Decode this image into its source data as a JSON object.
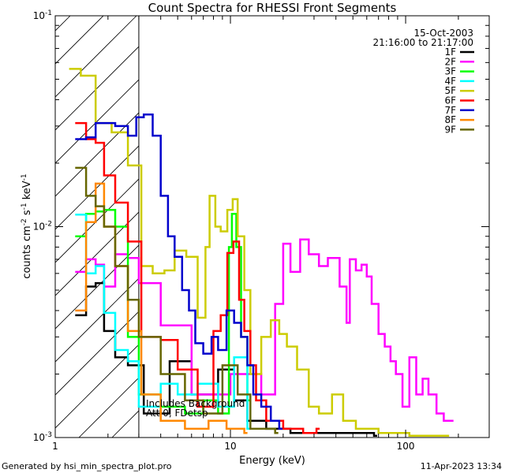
{
  "chart_data": {
    "type": "line",
    "title": "Count Spectra for RHESSI Front Segments",
    "xlabel": "Energy (keV)",
    "ylabel_parts": {
      "base": "counts cm",
      "exp1": "-2",
      "mid": " s",
      "exp2": "-1",
      "unit": " keV",
      "exp3": "-1"
    },
    "x_scale": "log",
    "y_scale": "log",
    "xlim": [
      1,
      300
    ],
    "ylim": [
      0.001,
      0.1
    ],
    "x_ticks": [
      {
        "v": 1,
        "label": "1"
      },
      {
        "v": 10,
        "label": "10"
      },
      {
        "v": 100,
        "label": "100"
      }
    ],
    "y_ticks": [
      {
        "v": 0.001,
        "m": "10",
        "e": "-3"
      },
      {
        "v": 0.01,
        "m": "10",
        "e": "-2"
      },
      {
        "v": 0.1,
        "m": "10",
        "e": "-1"
      }
    ],
    "date": "15-Oct-2003",
    "time_range": "21:16:00 to 21:17:00",
    "shaded_region_xmax": 3,
    "annotation_lines": [
      "Includes Background",
      "Att 0, FDetsp"
    ],
    "footer_left": "Generated by hsi_min_spectra_plot.pro",
    "footer_right": "11-Apr-2023 13:34",
    "legend_position": "top-right",
    "series": [
      {
        "name": "1F",
        "color": "#000000",
        "points": [
          [
            1.3,
            0.0038
          ],
          [
            1.5,
            0.0052
          ],
          [
            1.7,
            0.0054
          ],
          [
            1.9,
            0.0032
          ],
          [
            2.2,
            0.0024
          ],
          [
            2.6,
            0.0022
          ],
          [
            3.2,
            0.0013
          ],
          [
            4.5,
            0.0023
          ],
          [
            6.0,
            0.0016
          ],
          [
            8.5,
            0.0021
          ],
          [
            10.5,
            0.0015
          ],
          [
            12.5,
            0.0012
          ],
          [
            16,
            0.0011
          ],
          [
            22,
            0.00105
          ],
          [
            66,
            0.00102
          ]
        ]
      },
      {
        "name": "2F",
        "color": "#ff00ff",
        "points": [
          [
            1.3,
            0.0061
          ],
          [
            1.5,
            0.007
          ],
          [
            1.7,
            0.0066
          ],
          [
            1.9,
            0.0052
          ],
          [
            2.2,
            0.0074
          ],
          [
            2.6,
            0.0071
          ],
          [
            3.0,
            0.0054
          ],
          [
            4.0,
            0.0034
          ],
          [
            6.0,
            0.0016
          ],
          [
            10,
            0.002
          ],
          [
            15,
            0.0016
          ],
          [
            18,
            0.0043
          ],
          [
            20,
            0.0083
          ],
          [
            22,
            0.0061
          ],
          [
            25,
            0.0087
          ],
          [
            28,
            0.0074
          ],
          [
            32,
            0.0065
          ],
          [
            36,
            0.0071
          ],
          [
            42,
            0.0052
          ],
          [
            46,
            0.0035
          ],
          [
            48,
            0.007
          ],
          [
            52,
            0.0062
          ],
          [
            56,
            0.0066
          ],
          [
            60,
            0.0058
          ],
          [
            64,
            0.0043
          ],
          [
            70,
            0.0031
          ],
          [
            76,
            0.0027
          ],
          [
            82,
            0.0023
          ],
          [
            88,
            0.002
          ],
          [
            96,
            0.0014
          ],
          [
            105,
            0.0024
          ],
          [
            115,
            0.0016
          ],
          [
            125,
            0.0019
          ],
          [
            135,
            0.0016
          ],
          [
            150,
            0.0013
          ],
          [
            165,
            0.0012
          ],
          [
            180,
            0.0012
          ]
        ]
      },
      {
        "name": "3F",
        "color": "#00ff00",
        "points": [
          [
            1.3,
            0.009
          ],
          [
            1.5,
            0.0115
          ],
          [
            1.7,
            0.0118
          ],
          [
            1.9,
            0.012
          ],
          [
            2.2,
            0.01
          ],
          [
            2.6,
            0.003
          ],
          [
            3.0,
            0.0016
          ],
          [
            4.0,
            0.0014
          ],
          [
            5.5,
            0.0013
          ],
          [
            7.0,
            0.0015
          ],
          [
            8.5,
            0.0013
          ],
          [
            9.8,
            0.008
          ],
          [
            10.2,
            0.0115
          ],
          [
            10.8,
            0.008
          ],
          [
            11.5,
            0.003
          ],
          [
            12.5,
            0.0015
          ]
        ]
      },
      {
        "name": "4F",
        "color": "#00ffff",
        "points": [
          [
            1.3,
            0.0114
          ],
          [
            1.5,
            0.006
          ],
          [
            1.7,
            0.0065
          ],
          [
            1.9,
            0.0039
          ],
          [
            2.2,
            0.0026
          ],
          [
            2.6,
            0.0023
          ],
          [
            3.0,
            0.0014
          ],
          [
            4.0,
            0.0018
          ],
          [
            5.0,
            0.0016
          ],
          [
            6.5,
            0.0018
          ],
          [
            8.5,
            0.0014
          ],
          [
            10.5,
            0.0024
          ],
          [
            12.5,
            0.0011
          ]
        ]
      },
      {
        "name": "5F",
        "color": "#cccc00",
        "points": [
          [
            1.2,
            0.056
          ],
          [
            1.4,
            0.052
          ],
          [
            1.7,
            0.031
          ],
          [
            2.1,
            0.028
          ],
          [
            2.6,
            0.0195
          ],
          [
            3.1,
            0.0065
          ],
          [
            3.6,
            0.006
          ],
          [
            4.2,
            0.0062
          ],
          [
            4.8,
            0.0077
          ],
          [
            5.6,
            0.0072
          ],
          [
            6.5,
            0.0037
          ],
          [
            7.2,
            0.008
          ],
          [
            7.6,
            0.014
          ],
          [
            8.2,
            0.01
          ],
          [
            8.8,
            0.0095
          ],
          [
            9.6,
            0.012
          ],
          [
            10.3,
            0.0135
          ],
          [
            11.0,
            0.009
          ],
          [
            12.0,
            0.005
          ],
          [
            13,
            0.002
          ],
          [
            15,
            0.003
          ],
          [
            17,
            0.0036
          ],
          [
            19,
            0.0031
          ],
          [
            21,
            0.0027
          ],
          [
            24,
            0.0021
          ],
          [
            28,
            0.0014
          ],
          [
            32,
            0.0013
          ],
          [
            38,
            0.0016
          ],
          [
            44,
            0.0012
          ],
          [
            52,
            0.0011
          ],
          [
            70,
            0.00105
          ],
          [
            105,
            0.00102
          ],
          [
            170,
            0.00102
          ]
        ]
      },
      {
        "name": "6F",
        "color": "#ff0000",
        "points": [
          [
            1.3,
            0.031
          ],
          [
            1.5,
            0.026
          ],
          [
            1.7,
            0.025
          ],
          [
            1.9,
            0.0175
          ],
          [
            2.2,
            0.013
          ],
          [
            2.6,
            0.0085
          ],
          [
            3.1,
            0.003
          ],
          [
            4.0,
            0.0029
          ],
          [
            5.0,
            0.0021
          ],
          [
            6.5,
            0.0014
          ],
          [
            8.0,
            0.0032
          ],
          [
            8.8,
            0.0038
          ],
          [
            9.6,
            0.0075
          ],
          [
            10.4,
            0.0085
          ],
          [
            11.2,
            0.0045
          ],
          [
            12.0,
            0.0032
          ],
          [
            13,
            0.0022
          ],
          [
            14,
            0.0015
          ],
          [
            16,
            0.0012
          ],
          [
            20,
            0.0011
          ],
          [
            26,
            0.00105
          ],
          [
            31,
            0.0011
          ]
        ]
      },
      {
        "name": "7F",
        "color": "#0000cc",
        "points": [
          [
            1.3,
            0.026
          ],
          [
            1.5,
            0.0265
          ],
          [
            1.7,
            0.031
          ],
          [
            1.9,
            0.031
          ],
          [
            2.2,
            0.03
          ],
          [
            2.6,
            0.027
          ],
          [
            2.9,
            0.033
          ],
          [
            3.2,
            0.034
          ],
          [
            3.6,
            0.027
          ],
          [
            4.0,
            0.014
          ],
          [
            4.4,
            0.009
          ],
          [
            4.8,
            0.0072
          ],
          [
            5.3,
            0.005
          ],
          [
            5.8,
            0.004
          ],
          [
            6.3,
            0.0028
          ],
          [
            7.0,
            0.0025
          ],
          [
            7.8,
            0.003
          ],
          [
            8.5,
            0.0026
          ],
          [
            9.5,
            0.004
          ],
          [
            10.5,
            0.0035
          ],
          [
            11.5,
            0.003
          ],
          [
            12.5,
            0.0022
          ],
          [
            13.5,
            0.0016
          ],
          [
            15,
            0.0014
          ],
          [
            17,
            0.0012
          ],
          [
            19,
            0.0011
          ]
        ]
      },
      {
        "name": "8F",
        "color": "#ff8800",
        "points": [
          [
            1.3,
            0.004
          ],
          [
            1.5,
            0.0105
          ],
          [
            1.7,
            0.016
          ],
          [
            1.9,
            0.01
          ],
          [
            2.2,
            0.0065
          ],
          [
            2.6,
            0.0032
          ],
          [
            3.1,
            0.0016
          ],
          [
            4.0,
            0.0012
          ],
          [
            5.5,
            0.0011
          ],
          [
            7.5,
            0.0012
          ],
          [
            9.5,
            0.0011
          ],
          [
            12,
            0.00105
          ]
        ]
      },
      {
        "name": "9F",
        "color": "#666600",
        "points": [
          [
            1.3,
            0.019
          ],
          [
            1.5,
            0.014
          ],
          [
            1.7,
            0.0125
          ],
          [
            1.9,
            0.01
          ],
          [
            2.2,
            0.0065
          ],
          [
            2.6,
            0.0045
          ],
          [
            3.0,
            0.003
          ],
          [
            4.0,
            0.002
          ],
          [
            5.5,
            0.0015
          ],
          [
            7.0,
            0.0013
          ],
          [
            9.0,
            0.0022
          ],
          [
            11,
            0.0016
          ],
          [
            13,
            0.0011
          ],
          [
            18,
            0.00105
          ]
        ]
      }
    ]
  }
}
